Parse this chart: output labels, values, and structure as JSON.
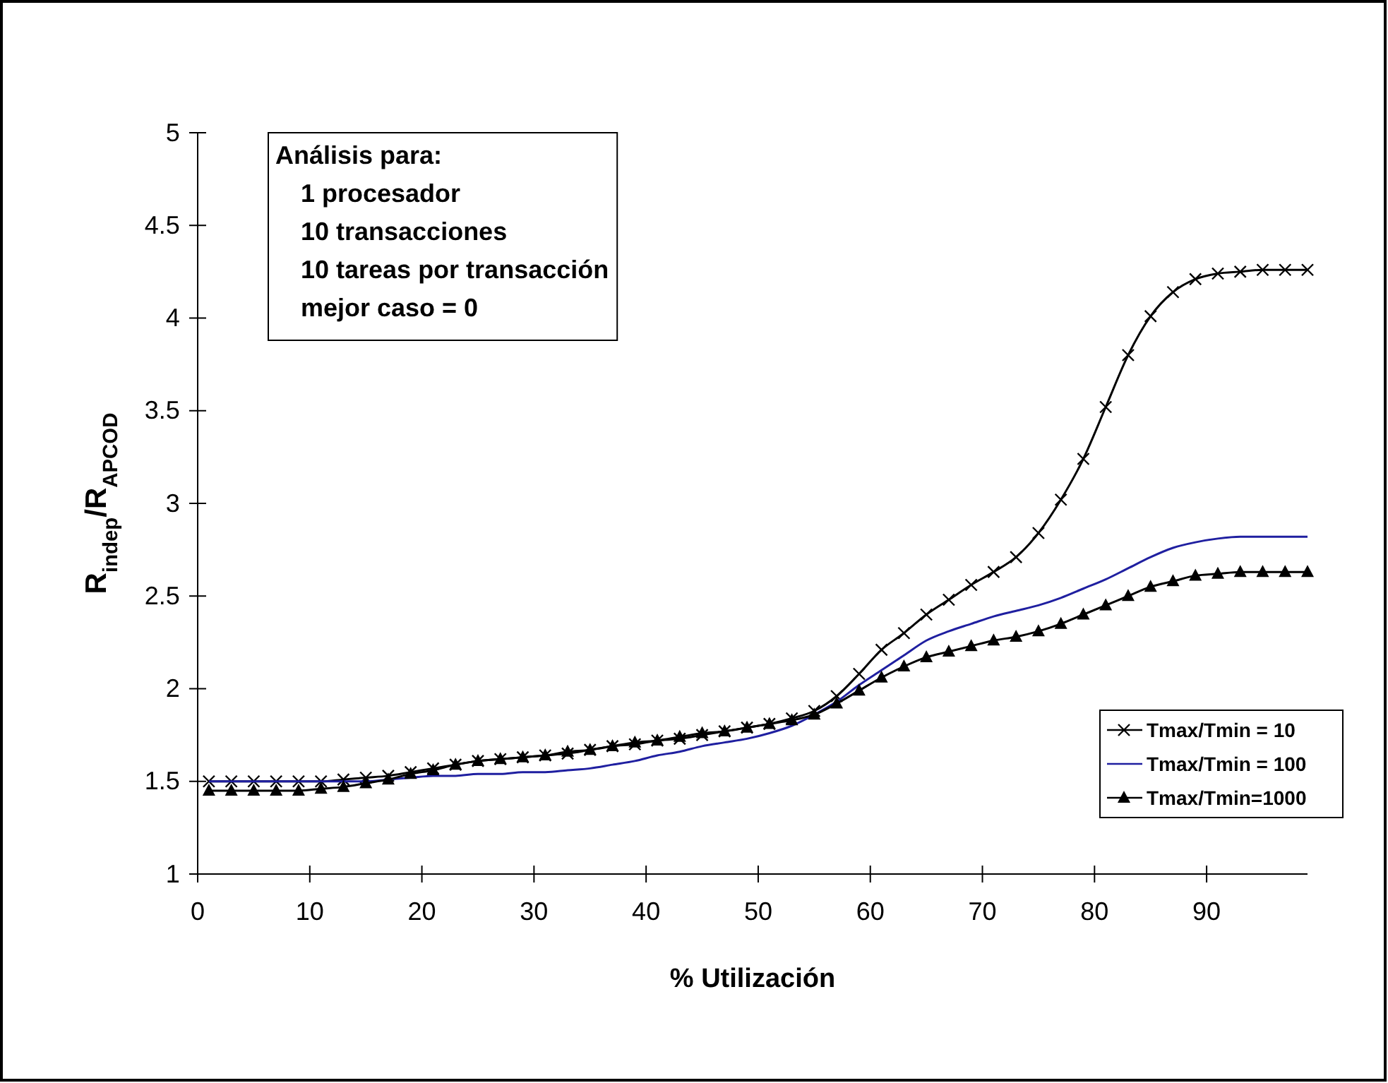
{
  "chart_data": {
    "type": "line",
    "xlabel": "% Utilización",
    "ylabel": "R$_{indep}$/R$_{APCOD}$",
    "annotations": [
      "Análisis para:",
      "1 procesador",
      "10 transacciones",
      "10 tareas por transacción",
      "mejor caso = 0"
    ],
    "x": [
      1,
      3,
      5,
      7,
      9,
      11,
      13,
      15,
      17,
      19,
      21,
      23,
      25,
      27,
      29,
      31,
      33,
      35,
      37,
      39,
      41,
      43,
      45,
      47,
      49,
      51,
      53,
      55,
      57,
      59,
      61,
      63,
      65,
      67,
      69,
      71,
      73,
      75,
      77,
      79,
      81,
      83,
      85,
      87,
      89,
      91,
      93,
      95,
      97,
      99
    ],
    "series": [
      {
        "name": "Tmax/Tmin = 10",
        "color": "#000000",
        "marker": "cross",
        "values": [
          1.5,
          1.5,
          1.5,
          1.5,
          1.5,
          1.5,
          1.51,
          1.52,
          1.53,
          1.55,
          1.57,
          1.59,
          1.61,
          1.62,
          1.63,
          1.64,
          1.65,
          1.67,
          1.69,
          1.7,
          1.72,
          1.73,
          1.75,
          1.77,
          1.79,
          1.81,
          1.84,
          1.88,
          1.96,
          2.08,
          2.21,
          2.3,
          2.4,
          2.48,
          2.56,
          2.63,
          2.71,
          2.84,
          3.02,
          3.24,
          3.52,
          3.8,
          4.01,
          4.14,
          4.21,
          4.24,
          4.25,
          4.26,
          4.26,
          4.26
        ]
      },
      {
        "name": "Tmax/Tmin = 100",
        "color": "#1f1fa0",
        "marker": "none",
        "values": [
          1.5,
          1.5,
          1.5,
          1.5,
          1.5,
          1.5,
          1.5,
          1.5,
          1.51,
          1.52,
          1.53,
          1.53,
          1.54,
          1.54,
          1.55,
          1.55,
          1.56,
          1.57,
          1.59,
          1.61,
          1.64,
          1.66,
          1.69,
          1.71,
          1.73,
          1.76,
          1.8,
          1.86,
          1.93,
          2.02,
          2.1,
          2.18,
          2.26,
          2.31,
          2.35,
          2.39,
          2.42,
          2.45,
          2.49,
          2.54,
          2.59,
          2.65,
          2.71,
          2.76,
          2.79,
          2.81,
          2.82,
          2.82,
          2.82,
          2.82
        ]
      },
      {
        "name": "Tmax/Tmin=1000",
        "color": "#000000",
        "marker": "triangle",
        "values": [
          1.45,
          1.45,
          1.45,
          1.45,
          1.45,
          1.46,
          1.47,
          1.49,
          1.51,
          1.54,
          1.56,
          1.59,
          1.61,
          1.62,
          1.63,
          1.64,
          1.66,
          1.67,
          1.69,
          1.71,
          1.72,
          1.74,
          1.76,
          1.77,
          1.79,
          1.81,
          1.83,
          1.86,
          1.92,
          1.99,
          2.06,
          2.12,
          2.17,
          2.2,
          2.23,
          2.26,
          2.28,
          2.31,
          2.35,
          2.4,
          2.45,
          2.5,
          2.55,
          2.58,
          2.61,
          2.62,
          2.63,
          2.63,
          2.63,
          2.63
        ]
      }
    ],
    "xlim": [
      0,
      99
    ],
    "xticks": [
      0,
      10,
      20,
      30,
      40,
      50,
      60,
      70,
      80,
      90
    ],
    "ylim": [
      1,
      5
    ],
    "yticks": [
      1,
      1.5,
      2,
      2.5,
      3,
      3.5,
      4,
      4.5,
      5
    ],
    "grid": false,
    "legend": "bottom right",
    "line_style": "solid"
  }
}
